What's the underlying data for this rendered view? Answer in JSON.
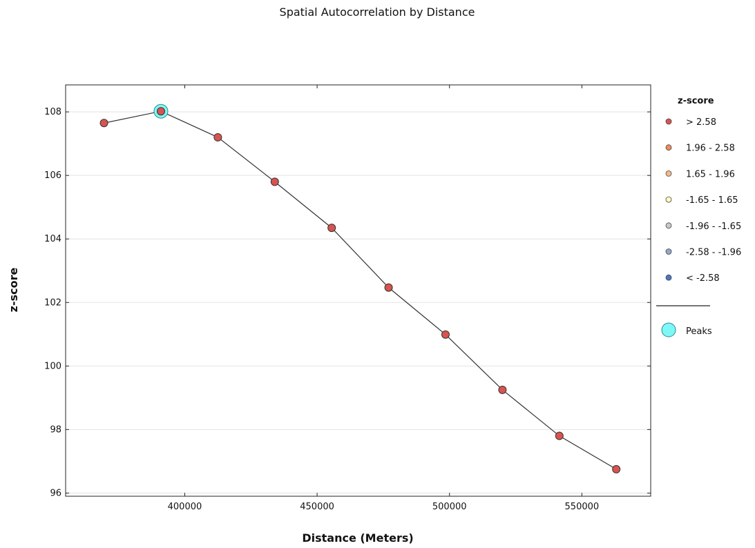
{
  "chart_data": {
    "type": "line",
    "title": "Spatial Autocorrelation by Distance",
    "xlabel": "Distance (Meters)",
    "ylabel": "z-score",
    "xlim": [
      355000,
      576000
    ],
    "ylim": [
      95.9,
      108.85
    ],
    "x_ticks": [
      400000,
      450000,
      500000,
      550000
    ],
    "y_ticks": [
      96,
      98,
      100,
      102,
      104,
      106,
      108
    ],
    "grid": "horizontal",
    "legend_position": "right",
    "series": [
      {
        "x": [
          369500,
          391000,
          412500,
          434000,
          455500,
          477000,
          498500,
          520000,
          541500,
          563000
        ],
        "y": [
          107.65,
          108.02,
          107.2,
          105.8,
          104.35,
          102.47,
          100.99,
          99.25,
          97.8,
          96.75
        ],
        "point_class": [
          "> 2.58",
          "> 2.58",
          "> 2.58",
          "> 2.58",
          "> 2.58",
          "> 2.58",
          "> 2.58",
          "> 2.58",
          "> 2.58",
          "> 2.58"
        ]
      }
    ],
    "peaks": [
      {
        "x": 391000,
        "y": 108.02
      }
    ],
    "legend": {
      "title": "z-score",
      "items": [
        {
          "label": "> 2.58",
          "color": "#d9534f"
        },
        {
          "label": "1.96 - 2.58",
          "color": "#ef8a62"
        },
        {
          "label": "1.65 - 1.96",
          "color": "#f6b88a"
        },
        {
          "label": "-1.65 - 1.65",
          "color": "#ffffbf"
        },
        {
          "label": "-1.96 - -1.65",
          "color": "#c8c8c8"
        },
        {
          "label": "-2.58 - -1.96",
          "color": "#92a8c9"
        },
        {
          "label": "< -2.58",
          "color": "#4a78c2"
        }
      ],
      "peaks_label": "Peaks",
      "peaks_color": "#7ef7f7"
    },
    "line_color": "#333333"
  }
}
